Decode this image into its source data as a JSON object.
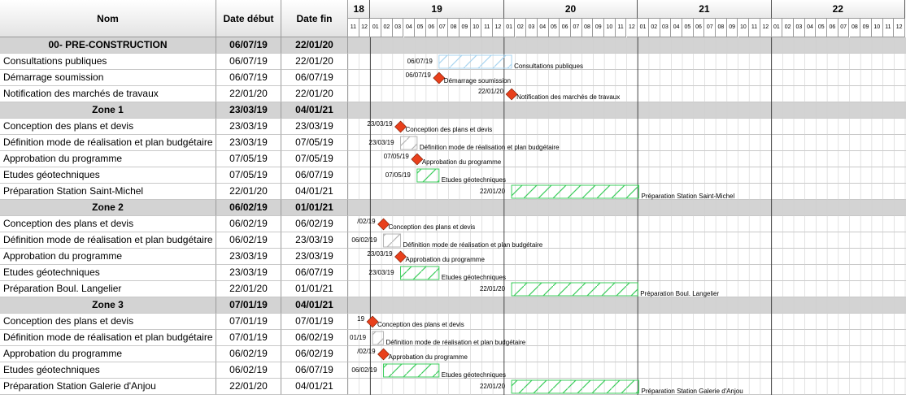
{
  "columns": {
    "name": "Nom",
    "start": "Date début",
    "end": "Date fin"
  },
  "timeline": {
    "start_month": "2018-11",
    "years": [
      {
        "label": "18",
        "months": [
          "11",
          "12"
        ]
      },
      {
        "label": "19",
        "months": [
          "01",
          "02",
          "03",
          "04",
          "05",
          "06",
          "07",
          "08",
          "09",
          "10",
          "11",
          "12"
        ]
      },
      {
        "label": "20",
        "months": [
          "01",
          "02",
          "03",
          "04",
          "05",
          "06",
          "07",
          "08",
          "09",
          "10",
          "11",
          "12"
        ]
      },
      {
        "label": "21",
        "months": [
          "01",
          "02",
          "03",
          "04",
          "05",
          "06",
          "07",
          "08",
          "09",
          "10",
          "11",
          "12"
        ]
      },
      {
        "label": "22",
        "months": [
          "01",
          "02",
          "03",
          "04",
          "05",
          "06",
          "07",
          "08",
          "09",
          "10",
          "11",
          "12"
        ]
      }
    ]
  },
  "tasks": [
    {
      "name": "00- PRE-CONSTRUCTION",
      "start": "06/07/19",
      "end": "22/01/20",
      "summary": true
    },
    {
      "name": "Consultations publiques",
      "start": "06/07/19",
      "end": "22/01/20",
      "kind": "bar",
      "style": "blue",
      "start_label": "06/07/19",
      "bar_label": "Consultations publiques"
    },
    {
      "name": "Démarrage soumission",
      "start": "06/07/19",
      "end": "06/07/19",
      "kind": "milestone",
      "start_label": "06/07/19",
      "bar_label": "Démarrage soumission"
    },
    {
      "name": "Notification des marchés de travaux",
      "start": "22/01/20",
      "end": "22/01/20",
      "kind": "milestone",
      "start_label": "22/01/20",
      "bar_label": "Notification des marchés de travaux"
    },
    {
      "name": "Zone 1",
      "start": "23/03/19",
      "end": "04/01/21",
      "summary": true
    },
    {
      "name": "Conception des plans et devis",
      "start": "23/03/19",
      "end": "23/03/19",
      "kind": "milestone",
      "start_label": "23/03/19",
      "bar_label": "Conception des plans et devis"
    },
    {
      "name": "Définition mode de réalisation et plan budgétaire",
      "start": "23/03/19",
      "end": "07/05/19",
      "kind": "bar",
      "style": "gray",
      "start_label": "23/03/19",
      "bar_label": "Définition mode de réalisation et plan budgétaire"
    },
    {
      "name": "Approbation du programme",
      "start": "07/05/19",
      "end": "07/05/19",
      "kind": "milestone",
      "start_label": "07/05/19",
      "bar_label": "Approbation du programme"
    },
    {
      "name": "Etudes géotechniques",
      "start": "07/05/19",
      "end": "06/07/19",
      "kind": "bar",
      "style": "green",
      "start_label": "07/05/19",
      "bar_label": "Etudes géotechniques"
    },
    {
      "name": "Préparation Station Saint-Michel",
      "start": "22/01/20",
      "end": "04/01/21",
      "kind": "bar",
      "style": "green",
      "start_label": "22/01/20",
      "bar_label": "Préparation Station Saint-Michel"
    },
    {
      "name": "Zone 2",
      "start": "06/02/19",
      "end": "01/01/21",
      "summary": true
    },
    {
      "name": "Conception des plans et devis",
      "start": "06/02/19",
      "end": "06/02/19",
      "kind": "milestone",
      "start_label": "/02/19",
      "bar_label": "Conception des plans et devis"
    },
    {
      "name": "Définition mode de réalisation et plan budgétaire",
      "start": "06/02/19",
      "end": "23/03/19",
      "kind": "bar",
      "style": "gray",
      "start_label": "06/02/19",
      "bar_label": "Définition mode de réalisation et plan budgétaire"
    },
    {
      "name": "Approbation du programme",
      "start": "23/03/19",
      "end": "23/03/19",
      "kind": "milestone",
      "start_label": "23/03/19",
      "bar_label": "Approbation du programme"
    },
    {
      "name": "Etudes géotechniques",
      "start": "23/03/19",
      "end": "06/07/19",
      "kind": "bar",
      "style": "green",
      "start_label": "23/03/19",
      "bar_label": "Etudes géotechniques"
    },
    {
      "name": "Préparation Boul. Langelier",
      "start": "22/01/20",
      "end": "01/01/21",
      "kind": "bar",
      "style": "green",
      "start_label": "22/01/20",
      "bar_label": "Préparation Boul. Langelier"
    },
    {
      "name": "Zone 3",
      "start": "07/01/19",
      "end": "04/01/21",
      "summary": true
    },
    {
      "name": "Conception des plans et devis",
      "start": "07/01/19",
      "end": "07/01/19",
      "kind": "milestone",
      "start_label": "19",
      "bar_label": "Conception des plans et devis"
    },
    {
      "name": "Définition mode de réalisation et plan budgétaire",
      "start": "07/01/19",
      "end": "06/02/19",
      "kind": "bar",
      "style": "gray",
      "start_label": "01/19",
      "bar_label": "Définition mode de réalisation et plan budgétaire"
    },
    {
      "name": "Approbation du programme",
      "start": "06/02/19",
      "end": "06/02/19",
      "kind": "milestone",
      "start_label": "/02/19",
      "bar_label": "Approbation du programme"
    },
    {
      "name": "Etudes géotechniques",
      "start": "06/02/19",
      "end": "06/07/19",
      "kind": "bar",
      "style": "green",
      "start_label": "06/02/19",
      "bar_label": "Etudes géotechniques"
    },
    {
      "name": "Préparation Station Galerie d'Anjou",
      "start": "22/01/20",
      "end": "04/01/21",
      "kind": "bar",
      "style": "green",
      "start_label": "22/01/20",
      "bar_label": "Préparation Station Galerie d'Anjou"
    }
  ],
  "colors": {
    "milestone": "#e8401c",
    "bar_blue": "#a8d4f0",
    "bar_green": "#3ccc5c",
    "bar_gray": "#b4b4b4",
    "summary_row": "#d3d3d3"
  }
}
